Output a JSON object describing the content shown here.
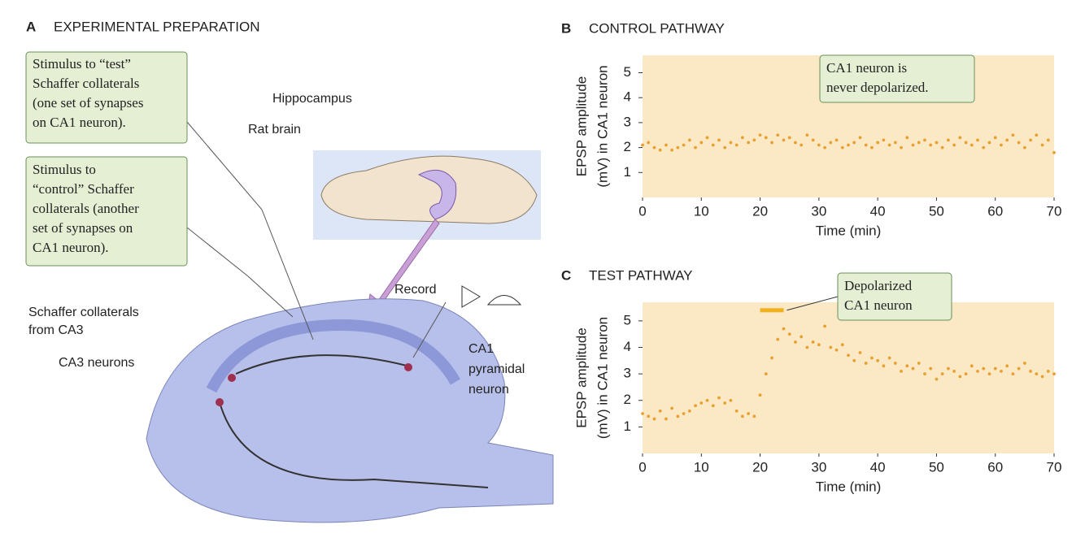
{
  "diagram": {
    "panel": "A",
    "title": "EXPERIMENTAL PREPARATION",
    "callouts": [
      [
        "Stimulus to “test”",
        "Schaffer collaterals",
        "(one set of synapses",
        "on CA1 neuron)."
      ],
      [
        "Stimulus to",
        "“control” Schaffer",
        "collaterals (another",
        "set of synapses on",
        "CA1 neuron)."
      ]
    ],
    "labels": {
      "hippocampus": "Hippocampus",
      "rat_brain": "Rat brain",
      "schaffer": [
        "Schaffer collaterals",
        "from CA3"
      ],
      "ca3": "CA3 neurons",
      "record": "Record",
      "ca1": [
        "CA1",
        "pyramidal",
        "neuron"
      ]
    }
  },
  "chart_data": [
    {
      "type": "scatter",
      "panel": "B",
      "title": "CONTROL PATHWAY",
      "ylabel": [
        "EPSP amplitude",
        "(mV) in CA1 neuron"
      ],
      "xlabel": "Time (min)",
      "annotation": [
        "CA1 neuron is",
        "never depolarized."
      ],
      "color": "#e8a030",
      "background": "#fbe9c6",
      "xlim": [
        0,
        70
      ],
      "xticks": [
        0,
        10,
        20,
        30,
        40,
        50,
        60,
        70
      ],
      "ylim": [
        0,
        5.7
      ],
      "yticks": [
        1,
        2,
        3,
        4,
        5
      ],
      "x": [
        0,
        1,
        2,
        3,
        4,
        5,
        6,
        7,
        8,
        9,
        10,
        11,
        12,
        13,
        14,
        15,
        16,
        17,
        18,
        19,
        20,
        21,
        22,
        23,
        24,
        25,
        26,
        27,
        28,
        29,
        30,
        31,
        32,
        33,
        34,
        35,
        36,
        37,
        38,
        39,
        40,
        41,
        42,
        43,
        44,
        45,
        46,
        47,
        48,
        49,
        50,
        51,
        52,
        53,
        54,
        55,
        56,
        57,
        58,
        59,
        60,
        61,
        62,
        63,
        64,
        65,
        66,
        67,
        68,
        69,
        70
      ],
      "values": [
        2.1,
        2.2,
        2.0,
        1.9,
        2.1,
        1.9,
        2.0,
        2.1,
        2.3,
        2.0,
        2.2,
        2.4,
        2.1,
        2.3,
        2.0,
        2.2,
        2.1,
        2.4,
        2.2,
        2.3,
        2.5,
        2.4,
        2.2,
        2.5,
        2.3,
        2.4,
        2.2,
        2.1,
        2.5,
        2.3,
        2.1,
        2.0,
        2.2,
        2.3,
        2.0,
        2.1,
        2.2,
        2.4,
        2.1,
        2.0,
        2.2,
        2.3,
        2.1,
        2.2,
        2.0,
        2.4,
        2.1,
        2.2,
        2.3,
        2.1,
        2.2,
        2.0,
        2.3,
        2.1,
        2.4,
        2.2,
        2.1,
        2.3,
        2.0,
        2.2,
        2.4,
        2.1,
        2.3,
        2.5,
        2.2,
        2.0,
        2.3,
        2.5,
        2.1,
        2.3,
        1.8
      ]
    },
    {
      "type": "scatter",
      "panel": "C",
      "title": "TEST PATHWAY",
      "ylabel": [
        "EPSP amplitude",
        "(mV) in CA1 neuron"
      ],
      "xlabel": "Time (min)",
      "annotation": [
        "Depolarized",
        "CA1 neuron"
      ],
      "color": "#e8a030",
      "background": "#fbe9c6",
      "highlight": {
        "x": [
          20,
          24
        ],
        "value": 5.4,
        "color": "#f0b020"
      },
      "xlim": [
        0,
        70
      ],
      "xticks": [
        0,
        10,
        20,
        30,
        40,
        50,
        60,
        70
      ],
      "ylim": [
        0,
        5.7
      ],
      "yticks": [
        1,
        2,
        3,
        4,
        5
      ],
      "x": [
        0,
        1,
        2,
        3,
        4,
        5,
        6,
        7,
        8,
        9,
        10,
        11,
        12,
        13,
        14,
        15,
        16,
        17,
        18,
        19,
        20,
        21,
        22,
        23,
        24,
        25,
        26,
        27,
        28,
        29,
        30,
        31,
        32,
        33,
        34,
        35,
        36,
        37,
        38,
        39,
        40,
        41,
        42,
        43,
        44,
        45,
        46,
        47,
        48,
        49,
        50,
        51,
        52,
        53,
        54,
        55,
        56,
        57,
        58,
        59,
        60,
        61,
        62,
        63,
        64,
        65,
        66,
        67,
        68,
        69,
        70
      ],
      "values": [
        1.5,
        1.4,
        1.3,
        1.6,
        1.3,
        1.7,
        1.4,
        1.5,
        1.6,
        1.8,
        1.9,
        2.0,
        1.8,
        2.1,
        1.9,
        2.0,
        1.6,
        1.4,
        1.5,
        1.4,
        2.2,
        3.0,
        3.6,
        4.3,
        4.7,
        4.5,
        4.2,
        4.4,
        4.0,
        4.2,
        4.1,
        4.8,
        4.0,
        3.9,
        4.1,
        3.7,
        3.5,
        3.8,
        3.4,
        3.6,
        3.5,
        3.3,
        3.6,
        3.4,
        3.1,
        3.3,
        3.2,
        3.4,
        3.0,
        3.2,
        2.8,
        3.0,
        3.2,
        3.1,
        2.9,
        3.0,
        3.3,
        3.1,
        3.2,
        3.0,
        3.2,
        3.1,
        3.3,
        3.0,
        3.2,
        3.4,
        3.1,
        3.0,
        2.9,
        3.1,
        3.0
      ]
    }
  ]
}
